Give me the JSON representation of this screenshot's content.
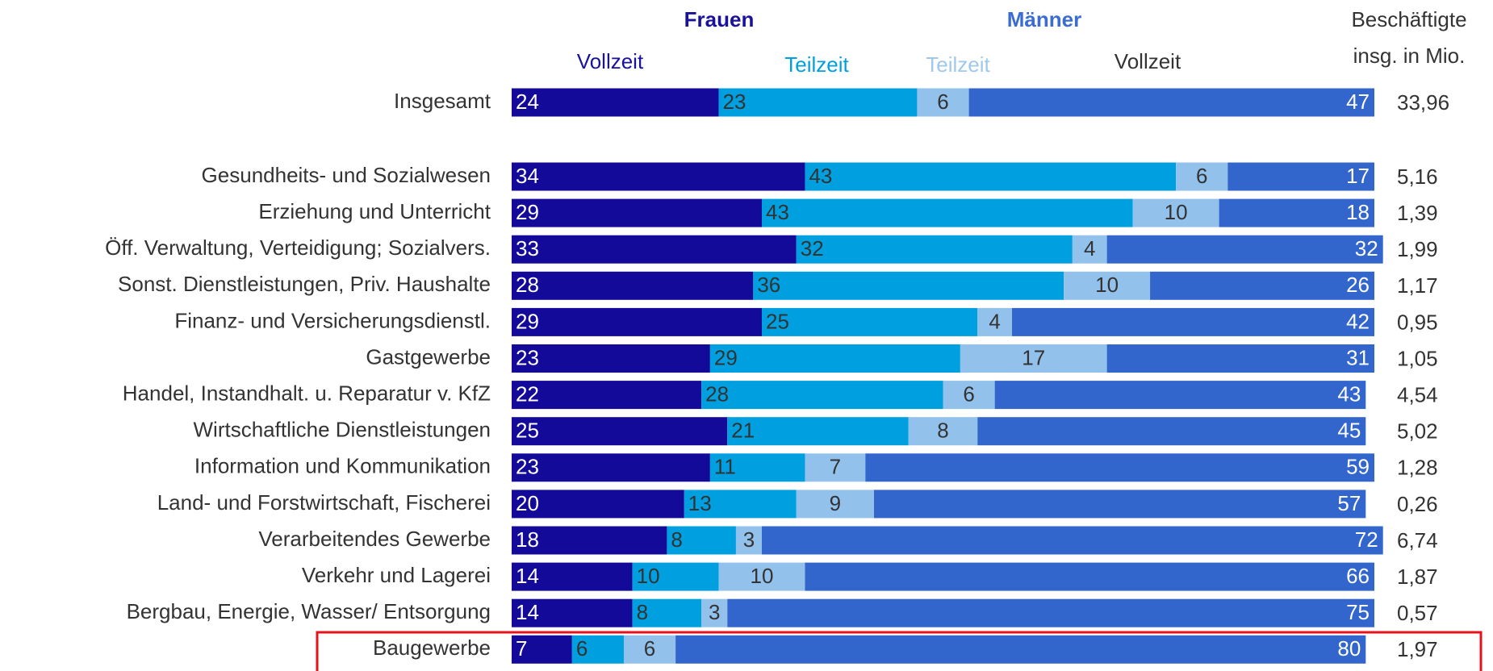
{
  "chart_data": {
    "type": "stacked_barh",
    "groups": [
      {
        "name": "Frauen",
        "color": "#1a129c"
      },
      {
        "name": "Männer",
        "color": "#3a6cd2"
      }
    ],
    "categories": [
      "Insgesamt",
      "Gesundheits- und Sozialwesen",
      "Erziehung und Unterricht",
      "Öff. Verwaltung, Verteidigung; Sozialvers.",
      "Sonst. Dienstleistungen, Priv. Haushalte",
      "Finanz- und Versicherungsdienstl.",
      "Gastgewerbe",
      "Handel, Instandhalt. u. Reparatur v. KfZ",
      "Wirtschaftliche Dienstleistungen",
      "Information und Kommunikation",
      "Land- und Forstwirtschaft, Fischerei",
      "Verarbeitendes Gewerbe",
      "Verkehr und Lagerei",
      "Bergbau, Energie, Wasser/ Entsorgung",
      "Baugewerbe"
    ],
    "series": [
      {
        "name": "Vollzeit",
        "color": "#140a9a",
        "label_color": "#1a129c",
        "values": [
          24,
          34,
          29,
          33,
          28,
          29,
          23,
          22,
          25,
          23,
          20,
          18,
          14,
          14,
          7
        ]
      },
      {
        "name": "Teilzeit",
        "color": "#009fe0",
        "label_color": "#009fe0",
        "values": [
          23,
          43,
          43,
          32,
          36,
          25,
          29,
          28,
          21,
          11,
          13,
          8,
          10,
          8,
          6
        ]
      },
      {
        "name": "Teilzeit",
        "color": "#92c1ec",
        "label_color": "#9fc8ee",
        "values": [
          6,
          6,
          10,
          4,
          10,
          4,
          17,
          6,
          8,
          7,
          9,
          3,
          10,
          3,
          6
        ]
      },
      {
        "name": "Vollzeit",
        "color": "#3366cc",
        "label_color": "#333333",
        "values": [
          47,
          17,
          18,
          32,
          26,
          42,
          31,
          43,
          45,
          59,
          57,
          72,
          66,
          75,
          80
        ]
      }
    ],
    "xlim": [
      0,
      100
    ],
    "totals": {
      "title": [
        "Beschäftigte",
        "insg. in Mio."
      ],
      "values": [
        33.96,
        5.16,
        1.39,
        1.99,
        1.17,
        0.95,
        1.05,
        4.54,
        5.02,
        1.28,
        0.26,
        6.74,
        1.87,
        0.57,
        1.97
      ],
      "value_labels": [
        "33,96",
        "5,16",
        "1,39",
        "1,99",
        "1,17",
        "0,95",
        "1,05",
        "4,54",
        "5,02",
        "1,28",
        "0,26",
        "6,74",
        "1,87",
        "0,57",
        "1,97"
      ]
    }
  }
}
